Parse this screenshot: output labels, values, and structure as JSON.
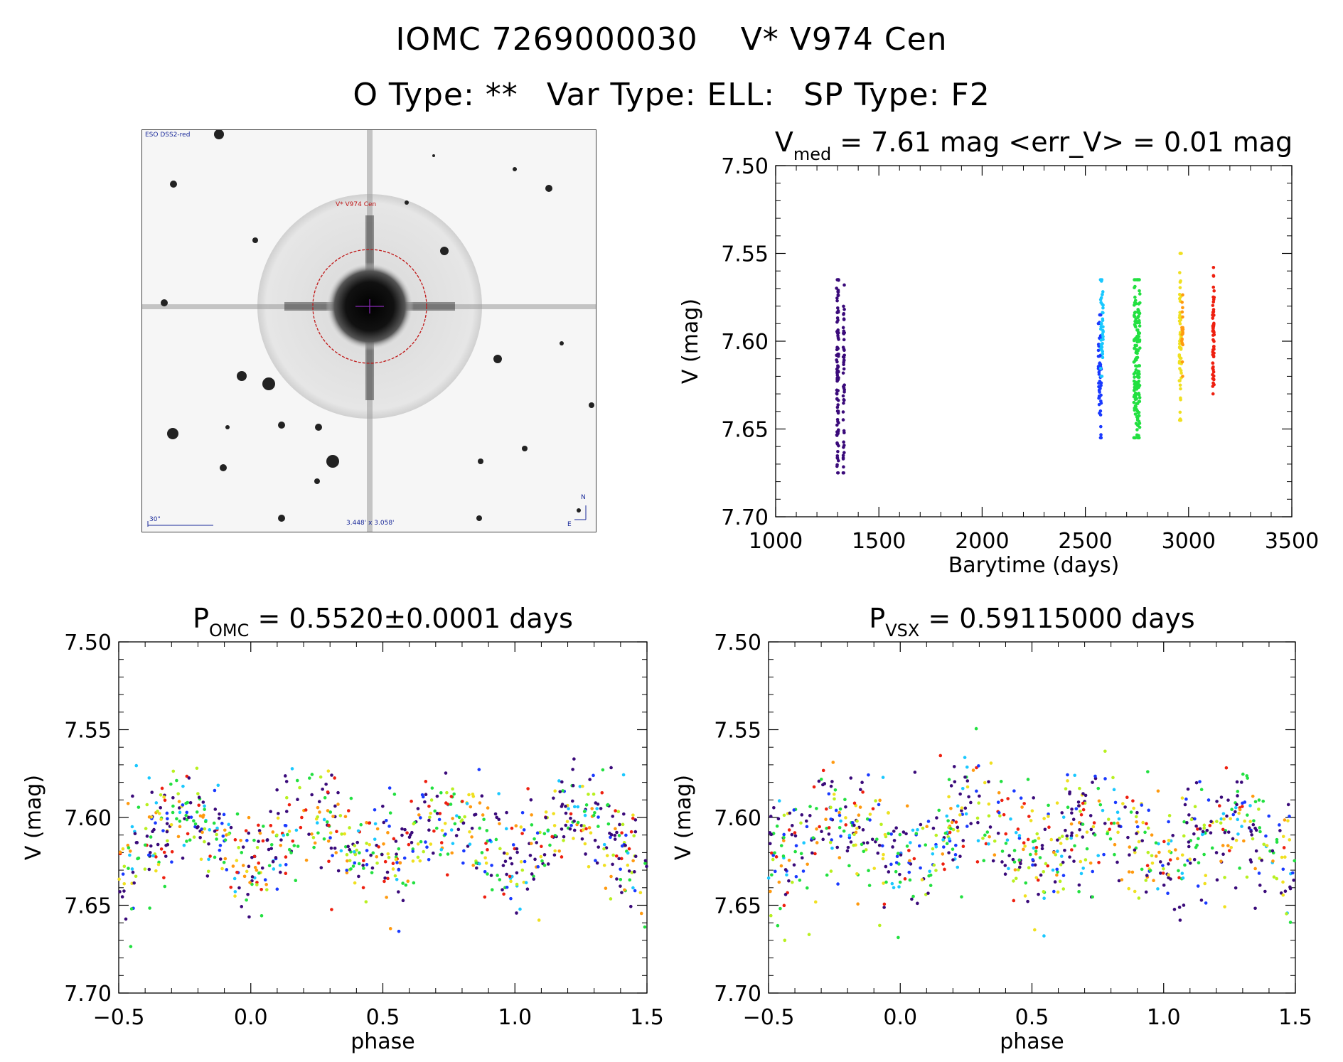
{
  "header": {
    "star_id": "IOMC 7269000030",
    "star_name": "V* V974 Cen",
    "o_type": "O Type: **",
    "var_type": "Var Type: ELL:",
    "sp_type": "SP Type: F2"
  },
  "sky_image": {
    "survey_label": "ESO DSS2-red",
    "target_label": "V* V974 Cen",
    "scale_label": "30\"",
    "fov_label": "3.448' x 3.058'",
    "north_label": "N",
    "east_label": "E"
  },
  "chart_data": [
    {
      "id": "lightcurve",
      "type": "scatter",
      "title_main": "V",
      "title_sub": "med",
      "title_rest": " = 7.61 mag <err_V> = 0.01 mag",
      "xlabel": "Barytime (days)",
      "ylabel": "V (mag)",
      "xlim": [
        1000,
        3500
      ],
      "ylim": [
        7.7,
        7.5
      ],
      "xticks": [
        1000,
        1500,
        2000,
        2500,
        3000,
        3500
      ],
      "yticks": [
        7.5,
        7.55,
        7.6,
        7.65,
        7.7
      ],
      "xtick_labels": [
        "1000",
        "1500",
        "2000",
        "2500",
        "3000",
        "3500"
      ],
      "ytick_labels": [
        "7.50",
        "7.55",
        "7.60",
        "7.65",
        "7.70"
      ],
      "groups": [
        {
          "x": 1300,
          "xspread": 10,
          "vmin": 7.565,
          "vmax": 7.675,
          "color": "#3a0a7a",
          "n": 90
        },
        {
          "x": 1330,
          "xspread": 6,
          "vmin": 7.568,
          "vmax": 7.675,
          "color": "#3a0a7a",
          "n": 50
        },
        {
          "x": 2570,
          "xspread": 14,
          "vmin": 7.585,
          "vmax": 7.655,
          "color": "#1a3aff",
          "n": 60
        },
        {
          "x": 2580,
          "xspread": 14,
          "vmin": 7.565,
          "vmax": 7.62,
          "color": "#1ac8ff",
          "n": 40
        },
        {
          "x": 2750,
          "xspread": 30,
          "vmin": 7.565,
          "vmax": 7.655,
          "color": "#22e040",
          "n": 160
        },
        {
          "x": 2960,
          "xspread": 10,
          "vmin": 7.55,
          "vmax": 7.645,
          "color": "#f0e020",
          "n": 60
        },
        {
          "x": 2970,
          "xspread": 6,
          "vmin": 7.568,
          "vmax": 7.62,
          "color": "#ff9a10",
          "n": 20
        },
        {
          "x": 3120,
          "xspread": 8,
          "vmin": 7.558,
          "vmax": 7.63,
          "color": "#ee2010",
          "n": 60
        }
      ]
    },
    {
      "id": "phase-omc",
      "type": "scatter",
      "title_main": "P",
      "title_sub": "OMC",
      "title_rest": " = 0.5520±0.0001 days",
      "xlabel": "phase",
      "ylabel": "V (mag)",
      "xlim": [
        -0.5,
        1.5
      ],
      "ylim": [
        7.7,
        7.5
      ],
      "xticks": [
        -0.5,
        0.0,
        0.5,
        1.0,
        1.5
      ],
      "yticks": [
        7.5,
        7.55,
        7.6,
        7.65,
        7.7
      ],
      "xtick_labels": [
        "−0.5",
        "0.0",
        "0.5",
        "1.0",
        "1.5"
      ],
      "ytick_labels": [
        "7.50",
        "7.55",
        "7.60",
        "7.65",
        "7.70"
      ],
      "curve": {
        "mean": 7.612,
        "amp": 0.014,
        "scatter": 0.017,
        "min_phase": 0.0
      },
      "colors": [
        "#3a0a7a",
        "#3a0a7a",
        "#3a0a7a",
        "#1a3aff",
        "#1ac8ff",
        "#22e040",
        "#22e040",
        "#b8f020",
        "#f0e020",
        "#ff9a10",
        "#ee2010"
      ],
      "n_points": 820
    },
    {
      "id": "phase-vsx",
      "type": "scatter",
      "title_main": "P",
      "title_sub": "VSX",
      "title_rest": " = 0.59115000 days",
      "xlabel": "phase",
      "ylabel": "V (mag)",
      "xlim": [
        -0.5,
        1.5
      ],
      "ylim": [
        7.7,
        7.5
      ],
      "xticks": [
        -0.5,
        0.0,
        0.5,
        1.0,
        1.5
      ],
      "yticks": [
        7.5,
        7.55,
        7.6,
        7.65,
        7.7
      ],
      "xtick_labels": [
        "−0.5",
        "0.0",
        "0.5",
        "1.0",
        "1.5"
      ],
      "ytick_labels": [
        "7.50",
        "7.55",
        "7.60",
        "7.65",
        "7.70"
      ],
      "curve": {
        "mean": 7.612,
        "amp": 0.01,
        "scatter": 0.019,
        "min_phase": 0.0
      },
      "colors": [
        "#3a0a7a",
        "#3a0a7a",
        "#3a0a7a",
        "#1a3aff",
        "#1ac8ff",
        "#22e040",
        "#22e040",
        "#b8f020",
        "#f0e020",
        "#ff9a10",
        "#ee2010"
      ],
      "n_points": 820
    }
  ]
}
